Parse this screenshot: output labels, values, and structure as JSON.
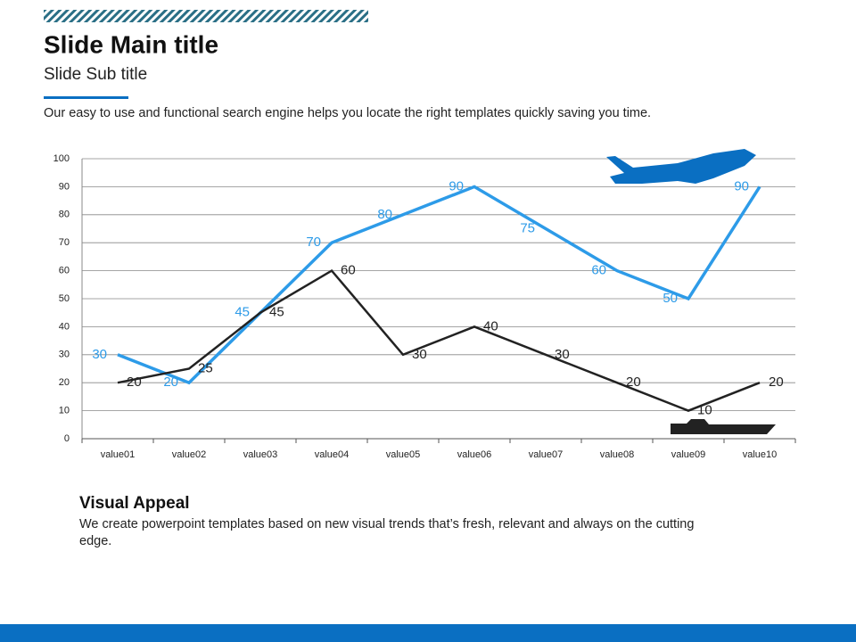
{
  "header": {
    "title": "Slide Main title",
    "subtitle": "Slide Sub title",
    "description": "Our easy to use and functional search engine helps you locate the right templates quickly saving you time."
  },
  "chart_data": {
    "type": "line",
    "categories": [
      "value01",
      "value02",
      "value03",
      "value04",
      "value05",
      "value06",
      "value07",
      "value08",
      "value09",
      "value10"
    ],
    "series": [
      {
        "color": "#2d9be8",
        "values": [
          30,
          20,
          45,
          70,
          80,
          90,
          75,
          60,
          50,
          90
        ]
      },
      {
        "color": "#222222",
        "values": [
          20,
          25,
          45,
          60,
          30,
          40,
          30,
          20,
          10,
          20
        ]
      }
    ],
    "ylim": [
      0,
      100
    ],
    "yticks": [
      0,
      10,
      20,
      30,
      40,
      50,
      60,
      70,
      80,
      90,
      100
    ],
    "grid": true
  },
  "section": {
    "heading": "Visual Appeal",
    "body": "We create powerpoint templates based on new visual trends that’s fresh, relevant and always on the cutting edge."
  }
}
